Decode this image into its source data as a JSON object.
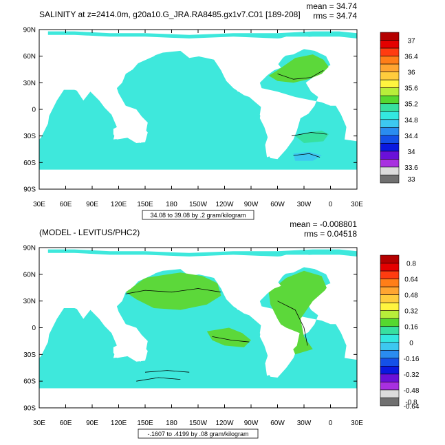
{
  "panels": [
    {
      "title": "SALINITY at z=2414.0m, g20a10.G_JRA.RA8485.gx1v7.C01 [189-208]",
      "mean": "mean = 34.74",
      "rms": "rms = 34.74",
      "range_label": "34.08 to 39.08 by .2 gram/kilogram",
      "legend": {
        "labels": [
          "37",
          "36.4",
          "36",
          "35.6",
          "35.2",
          "34.8",
          "34.4",
          "34",
          "33.6",
          "33"
        ],
        "colors": [
          "#b40000",
          "#e40000",
          "#ff3c10",
          "#ff7e18",
          "#ffa531",
          "#ffcc3d",
          "#fff43f",
          "#b8ee3a",
          "#55d82f",
          "#37e0a0",
          "#33e8e0",
          "#3dc8f0",
          "#2a8cf0",
          "#1450e8",
          "#0a18e0",
          "#6a10d8",
          "#a830e0",
          "#dcdcdc",
          "#707070"
        ]
      },
      "fill_color": "#3ee8dc"
    },
    {
      "title": "(MODEL - LEVITUS/PHC2)",
      "mean": "mean = -0.008801",
      "rms": "rms = 0.04518",
      "range_label": "-.1607 to .4199 by .08 gram/kilogram",
      "legend": {
        "labels": [
          "0.8",
          "0.64",
          "0.48",
          "0.32",
          "0.16",
          "0",
          "-0.16",
          "-0.32",
          "-0.48",
          "-0.64",
          "-0.8"
        ],
        "colors": [
          "#b40000",
          "#e40000",
          "#ff3c10",
          "#ff7e18",
          "#ffa531",
          "#ffcc3d",
          "#fff43f",
          "#b8ee3a",
          "#55d82f",
          "#37e0a0",
          "#33e8e0",
          "#3dc8f0",
          "#2a8cf0",
          "#1450e8",
          "#0a18e0",
          "#6a10d8",
          "#a830e0",
          "#dcdcdc",
          "#707070"
        ]
      },
      "fill_color": "#3ee8dc",
      "anomaly_color": "#5cd83a"
    }
  ],
  "axes": {
    "lat_ticks": [
      "90N",
      "60N",
      "30N",
      "0",
      "30S",
      "60S",
      "90S"
    ],
    "lon_ticks": [
      "30E",
      "60E",
      "90E",
      "120E",
      "150E",
      "180",
      "150W",
      "120W",
      "90W",
      "60W",
      "30W",
      "0",
      "30E"
    ]
  }
}
